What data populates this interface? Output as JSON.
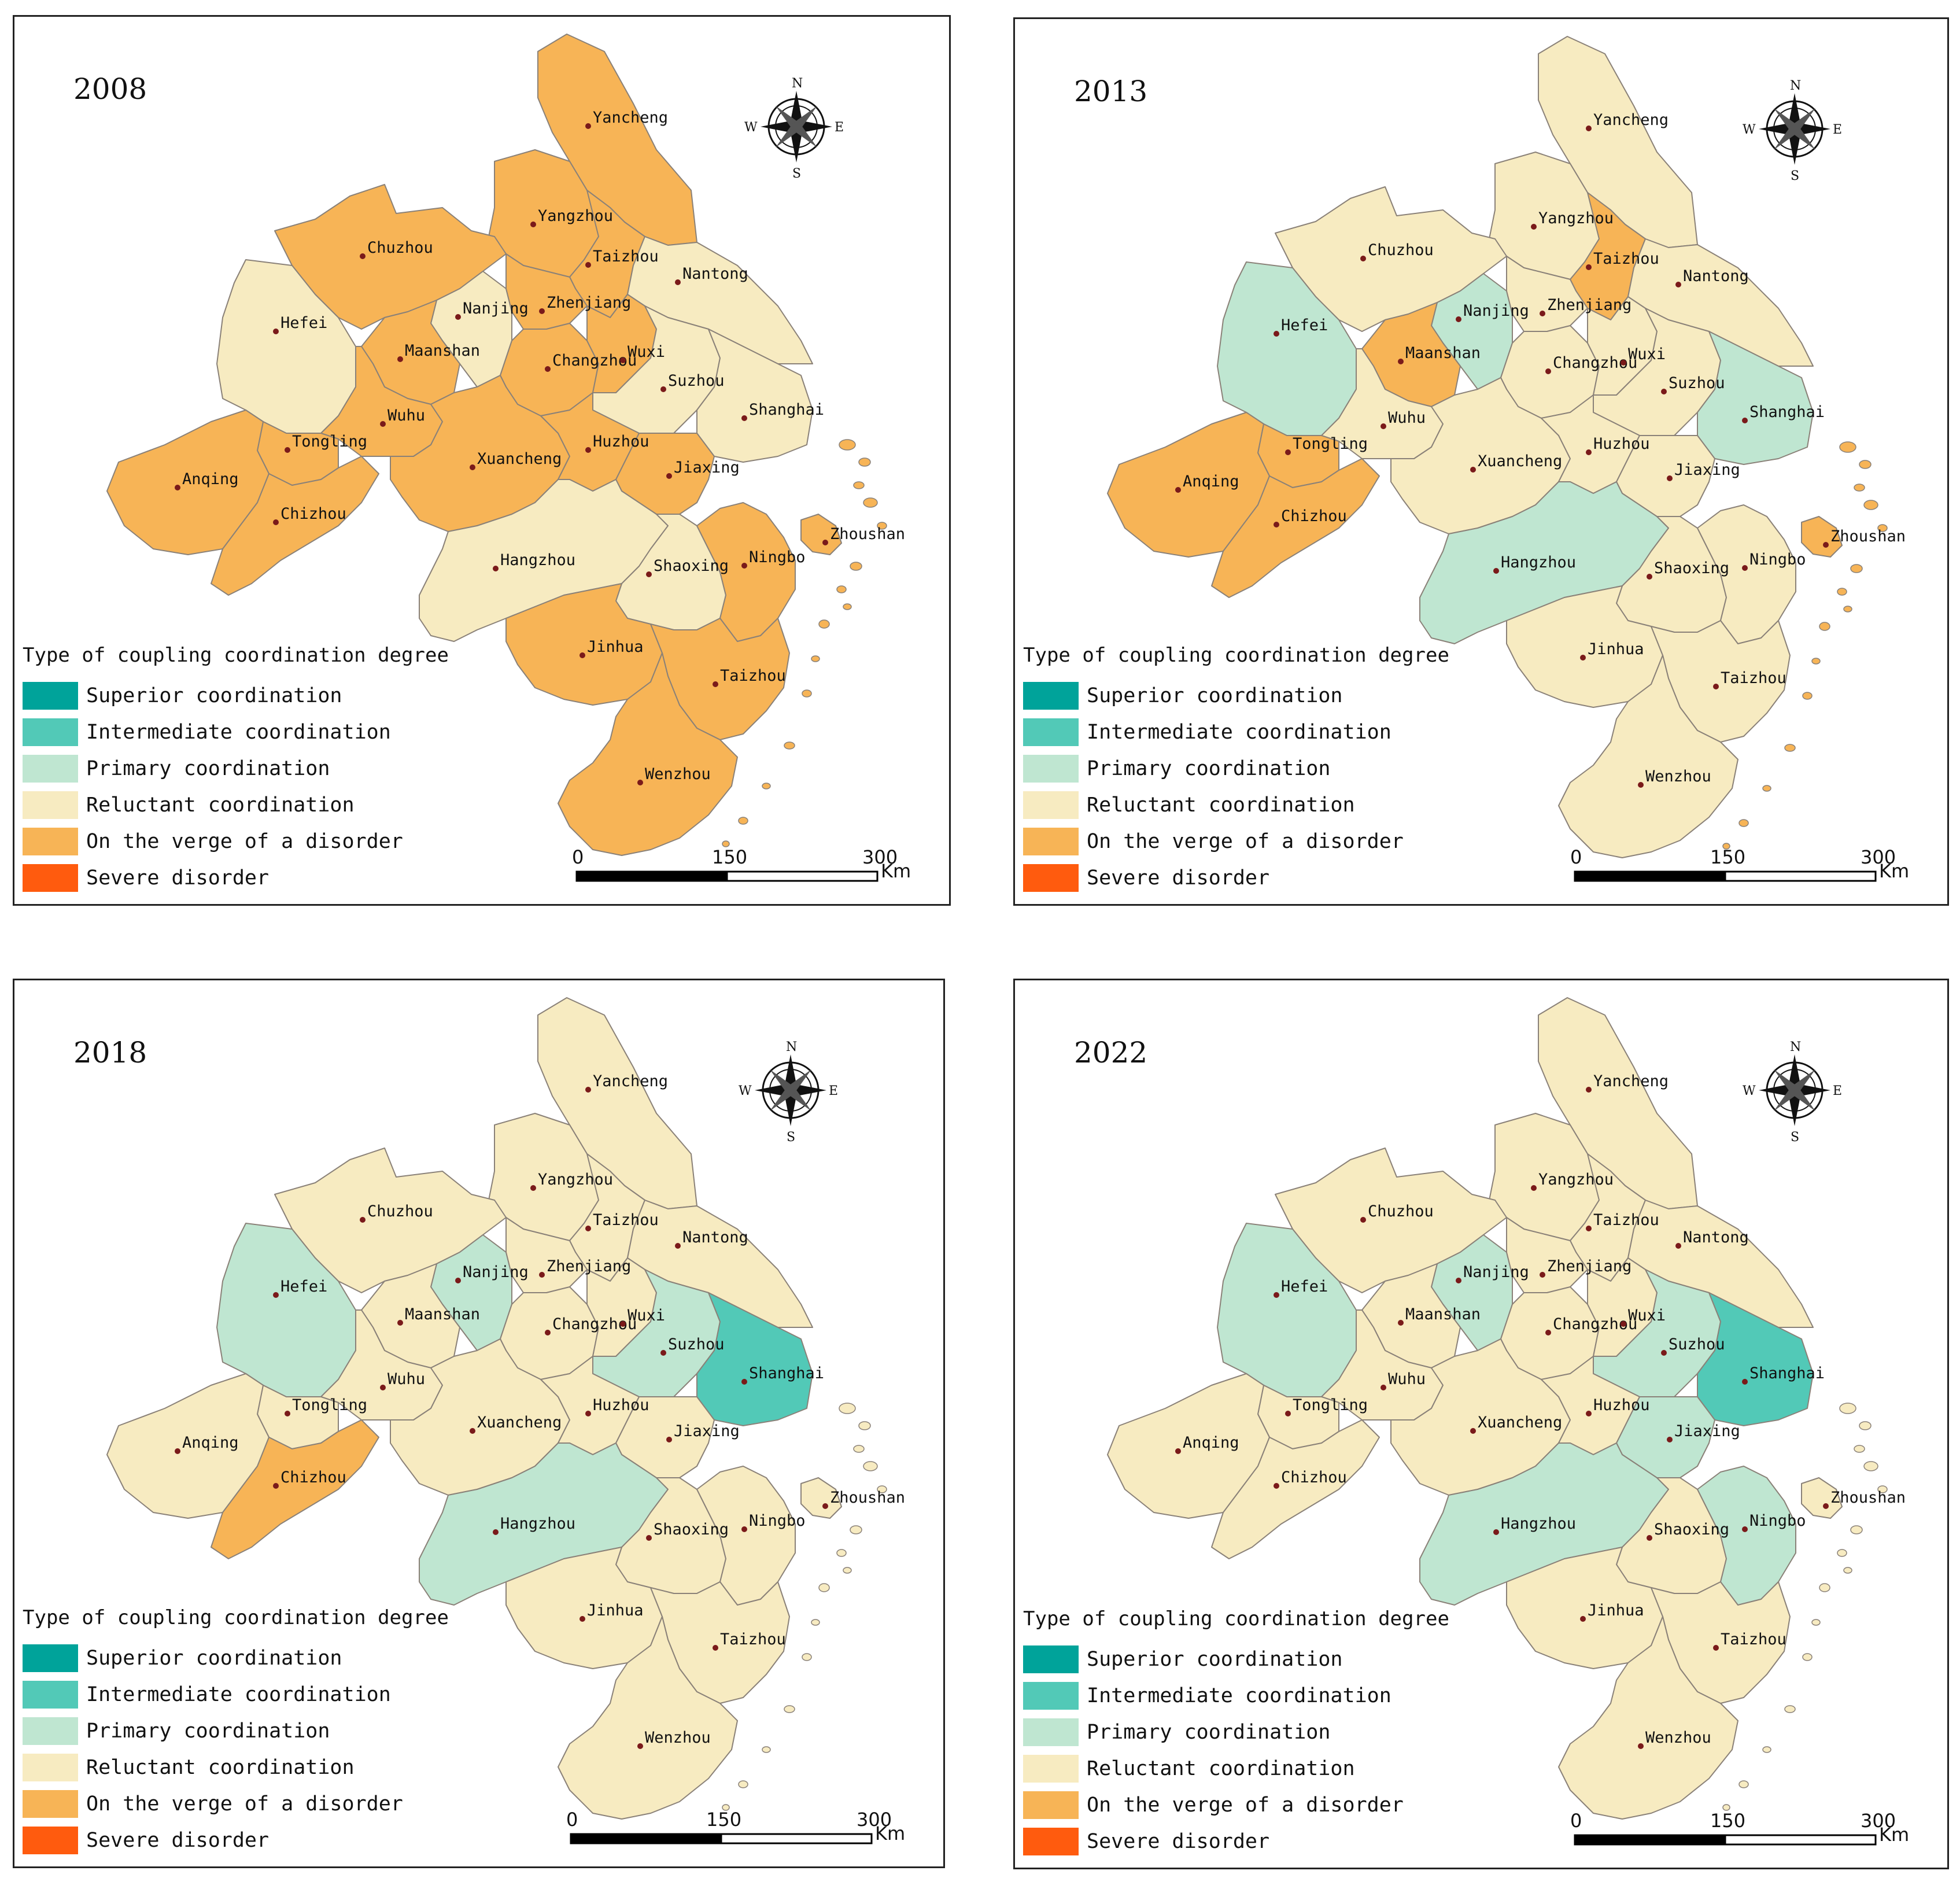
{
  "legend": {
    "title": "Type of coupling coordination degree",
    "categories": [
      {
        "key": "superior",
        "label": "Superior coordination",
        "color": "#00a39a"
      },
      {
        "key": "intermediate",
        "label": "Intermediate coordination",
        "color": "#52c9b7"
      },
      {
        "key": "primary",
        "label": "Primary coordination",
        "color": "#bfe6d1"
      },
      {
        "key": "reluctant",
        "label": "Reluctant coordination",
        "color": "#f7ebc1"
      },
      {
        "key": "verge",
        "label": "On the verge of a disorder",
        "color": "#f7b456"
      },
      {
        "key": "severe",
        "label": "Severe disorder",
        "color": "#ff5b0e"
      }
    ]
  },
  "scale_bar": {
    "ticks": [
      "0",
      "150",
      "300"
    ],
    "unit": "Km"
  },
  "compass": {
    "n": "N",
    "s": "S",
    "e": "E",
    "w": "W"
  },
  "maps": [
    {
      "year": "2008",
      "classes": {
        "Yancheng": "verge",
        "Yangzhou": "verge",
        "Taizhou": "verge",
        "Nantong": "reluctant",
        "Chuzhou": "verge",
        "Hefei": "reluctant",
        "Nanjing": "reluctant",
        "Zhenjiang": "verge",
        "Maanshan": "verge",
        "Changzhou": "verge",
        "Wuxi": "verge",
        "Suzhou": "reluctant",
        "Shanghai": "reluctant",
        "Wuhu": "verge",
        "Tongling": "verge",
        "Anqing": "verge",
        "Chizhou": "verge",
        "Xuancheng": "verge",
        "Huzhou": "verge",
        "Jiaxing": "verge",
        "Hangzhou": "reluctant",
        "Shaoxing": "reluctant",
        "Ningbo": "verge",
        "Zhoushan": "verge",
        "Jinhua": "verge",
        "Taizhou2": "verge",
        "Wenzhou": "verge"
      }
    },
    {
      "year": "2013",
      "classes": {
        "Yancheng": "reluctant",
        "Yangzhou": "reluctant",
        "Taizhou": "verge",
        "Nantong": "reluctant",
        "Chuzhou": "reluctant",
        "Hefei": "primary",
        "Nanjing": "primary",
        "Zhenjiang": "reluctant",
        "Maanshan": "verge",
        "Changzhou": "reluctant",
        "Wuxi": "reluctant",
        "Suzhou": "reluctant",
        "Shanghai": "primary",
        "Wuhu": "reluctant",
        "Tongling": "verge",
        "Anqing": "verge",
        "Chizhou": "verge",
        "Xuancheng": "reluctant",
        "Huzhou": "reluctant",
        "Jiaxing": "reluctant",
        "Hangzhou": "primary",
        "Shaoxing": "reluctant",
        "Ningbo": "reluctant",
        "Zhoushan": "verge",
        "Jinhua": "reluctant",
        "Taizhou2": "reluctant",
        "Wenzhou": "reluctant"
      }
    },
    {
      "year": "2018",
      "classes": {
        "Yancheng": "reluctant",
        "Yangzhou": "reluctant",
        "Taizhou": "reluctant",
        "Nantong": "reluctant",
        "Chuzhou": "reluctant",
        "Hefei": "primary",
        "Nanjing": "primary",
        "Zhenjiang": "reluctant",
        "Maanshan": "reluctant",
        "Changzhou": "reluctant",
        "Wuxi": "reluctant",
        "Suzhou": "primary",
        "Shanghai": "intermediate",
        "Wuhu": "reluctant",
        "Tongling": "reluctant",
        "Anqing": "reluctant",
        "Chizhou": "verge",
        "Xuancheng": "reluctant",
        "Huzhou": "reluctant",
        "Jiaxing": "reluctant",
        "Hangzhou": "primary",
        "Shaoxing": "reluctant",
        "Ningbo": "reluctant",
        "Zhoushan": "reluctant",
        "Jinhua": "reluctant",
        "Taizhou2": "reluctant",
        "Wenzhou": "reluctant"
      }
    },
    {
      "year": "2022",
      "classes": {
        "Yancheng": "reluctant",
        "Yangzhou": "reluctant",
        "Taizhou": "reluctant",
        "Nantong": "reluctant",
        "Chuzhou": "reluctant",
        "Hefei": "primary",
        "Nanjing": "primary",
        "Zhenjiang": "reluctant",
        "Maanshan": "reluctant",
        "Changzhou": "reluctant",
        "Wuxi": "reluctant",
        "Suzhou": "primary",
        "Shanghai": "intermediate",
        "Wuhu": "reluctant",
        "Tongling": "reluctant",
        "Anqing": "reluctant",
        "Chizhou": "reluctant",
        "Xuancheng": "reluctant",
        "Huzhou": "reluctant",
        "Jiaxing": "primary",
        "Hangzhou": "primary",
        "Shaoxing": "reluctant",
        "Ningbo": "primary",
        "Zhoushan": "reluctant",
        "Jinhua": "reluctant",
        "Taizhou2": "reluctant",
        "Wenzhou": "reluctant"
      }
    }
  ],
  "cities": [
    {
      "key": "Yancheng",
      "label": "Yancheng"
    },
    {
      "key": "Yangzhou",
      "label": "Yangzhou"
    },
    {
      "key": "Taizhou",
      "label": "Taizhou"
    },
    {
      "key": "Nantong",
      "label": "Nantong"
    },
    {
      "key": "Chuzhou",
      "label": "Chuzhou"
    },
    {
      "key": "Hefei",
      "label": "Hefei"
    },
    {
      "key": "Nanjing",
      "label": "Nanjing"
    },
    {
      "key": "Zhenjiang",
      "label": "Zhenjiang"
    },
    {
      "key": "Maanshan",
      "label": "Maanshan"
    },
    {
      "key": "Changzhou",
      "label": "Changzhou"
    },
    {
      "key": "Wuxi",
      "label": "Wuxi"
    },
    {
      "key": "Suzhou",
      "label": "Suzhou"
    },
    {
      "key": "Shanghai",
      "label": "Shanghai"
    },
    {
      "key": "Wuhu",
      "label": "Wuhu"
    },
    {
      "key": "Tongling",
      "label": "Tongling"
    },
    {
      "key": "Anqing",
      "label": "Anqing"
    },
    {
      "key": "Chizhou",
      "label": "Chizhou"
    },
    {
      "key": "Xuancheng",
      "label": "Xuancheng"
    },
    {
      "key": "Huzhou",
      "label": "Huzhou"
    },
    {
      "key": "Jiaxing",
      "label": "Jiaxing"
    },
    {
      "key": "Hangzhou",
      "label": "Hangzhou"
    },
    {
      "key": "Shaoxing",
      "label": "Shaoxing"
    },
    {
      "key": "Ningbo",
      "label": "Ningbo"
    },
    {
      "key": "Zhoushan",
      "label": "Zhoushan"
    },
    {
      "key": "Jinhua",
      "label": "Jinhua"
    },
    {
      "key": "Taizhou2",
      "label": "Taizhou"
    },
    {
      "key": "Wenzhou",
      "label": "Wenzhou"
    }
  ]
}
